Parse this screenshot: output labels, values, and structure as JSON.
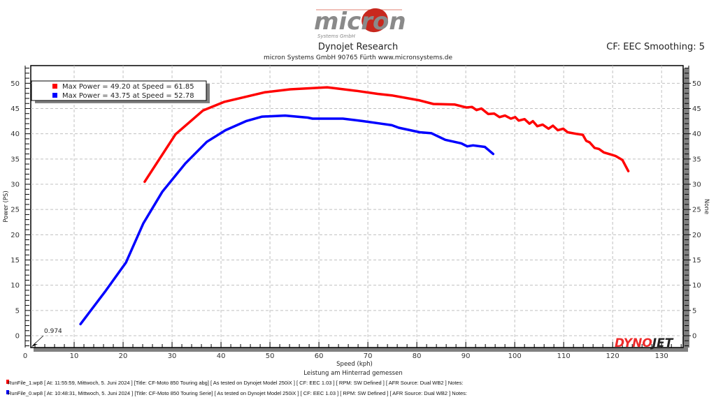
{
  "header": {
    "logo_text": "micron",
    "logo_subtext": "Systems GmbH",
    "title": "Dynojet Research",
    "subtitle": "micron Systems GmbH  90765 Fürth www.micronsystems.de",
    "cf_info": "CF: EEC Smoothing: 5"
  },
  "colors": {
    "run1": "#ff0000",
    "run0": "#0000ff",
    "grid": "#c0c0c0",
    "shadow": "#808080"
  },
  "chart_data": {
    "type": "line",
    "xlabel": "Speed (kph)",
    "ylabel": "Power (PS)",
    "ylabel_right": "None",
    "note": "Leistung am Hinterrad gemessen",
    "xlim": [
      1.14,
      134.4
    ],
    "ylim": [
      -2.35,
      53.5
    ],
    "xticks": [
      0,
      10,
      20,
      30,
      40,
      50,
      60,
      70,
      80,
      90,
      100,
      110,
      120,
      130
    ],
    "yticks": [
      0,
      5,
      10,
      15,
      20,
      25,
      30,
      35,
      40,
      45,
      50
    ],
    "grid": true,
    "cursor_label": "0.974",
    "legend_position": "top-left",
    "legend": [
      "Max Power = 49.20 at Speed = 61.85",
      "Max Power = 43.75 at Speed = 52.78"
    ],
    "series": [
      {
        "name": "RunFile_1.wp8",
        "color": "#ff0000",
        "x": [
          24.4,
          30.7,
          36.3,
          40.6,
          48.9,
          54.1,
          61.7,
          67.7,
          72.0,
          74.9,
          80.6,
          83.4,
          87.7,
          90.1,
          91.3,
          92.2,
          93.2,
          94.6,
          95.8,
          96.9,
          98.0,
          99.2,
          100.1,
          100.8,
          102.0,
          103.0,
          103.7,
          104.6,
          105.7,
          106.9,
          107.8,
          108.8,
          109.9,
          110.8,
          112.5,
          113.9,
          114.6,
          115.3,
          116.3,
          117.2,
          118.2,
          119.6,
          120.6,
          122.0,
          123.2
        ],
        "y": [
          30.5,
          39.9,
          44.6,
          46.3,
          48.2,
          48.8,
          49.2,
          48.5,
          47.9,
          47.6,
          46.6,
          45.9,
          45.8,
          45.2,
          45.3,
          44.7,
          45.0,
          43.9,
          44.0,
          43.3,
          43.6,
          43.0,
          43.3,
          42.6,
          42.9,
          42.0,
          42.5,
          41.5,
          41.8,
          41.0,
          41.6,
          40.7,
          41.0,
          40.3,
          40.0,
          39.8,
          38.6,
          38.3,
          37.2,
          37.0,
          36.3,
          35.9,
          35.6,
          34.8,
          32.6
        ]
      },
      {
        "name": "RunFile_0.wp8",
        "color": "#0000ff",
        "x": [
          11.3,
          16.3,
          20.6,
          24.1,
          28.0,
          32.7,
          37.1,
          40.9,
          45.1,
          48.4,
          53.1,
          57.7,
          58.7,
          64.9,
          69.1,
          72.7,
          74.9,
          76.3,
          80.6,
          83.0,
          85.8,
          89.1,
          90.3,
          91.5,
          93.9,
          95.6
        ],
        "y": [
          2.3,
          8.7,
          14.5,
          22.2,
          28.5,
          34.1,
          38.4,
          40.7,
          42.5,
          43.4,
          43.6,
          43.2,
          43.0,
          43.0,
          42.5,
          42.0,
          41.7,
          41.2,
          40.3,
          40.1,
          38.8,
          38.1,
          37.5,
          37.7,
          37.4,
          36.0
        ]
      }
    ]
  },
  "footer": {
    "lines": [
      "RunFile_1.wp8 [ At: 11:55:59, Mittwoch, 5. Juni 2024 ] [Title: CF-Moto 850 Touring abg]  [ As tested on Dynojet Model 250iX ] [ CF: EEC 1.03 ] [ RPM: SW Defined ] [ AFR Source: Dual WB2 ] Notes:",
      "RunFile_0.wp8 [ At: 10:48:31, Mittwoch, 5. Juni 2024 ] [Title: CF-Moto 850 Touring Serie]  [ As tested on Dynojet Model 250iX ] [ CF: EEC 1.03 ] [ RPM: SW Defined ] [ AFR Source: Dual WB2 ] Notes:"
    ]
  },
  "brand_logo": "DYNOJET"
}
